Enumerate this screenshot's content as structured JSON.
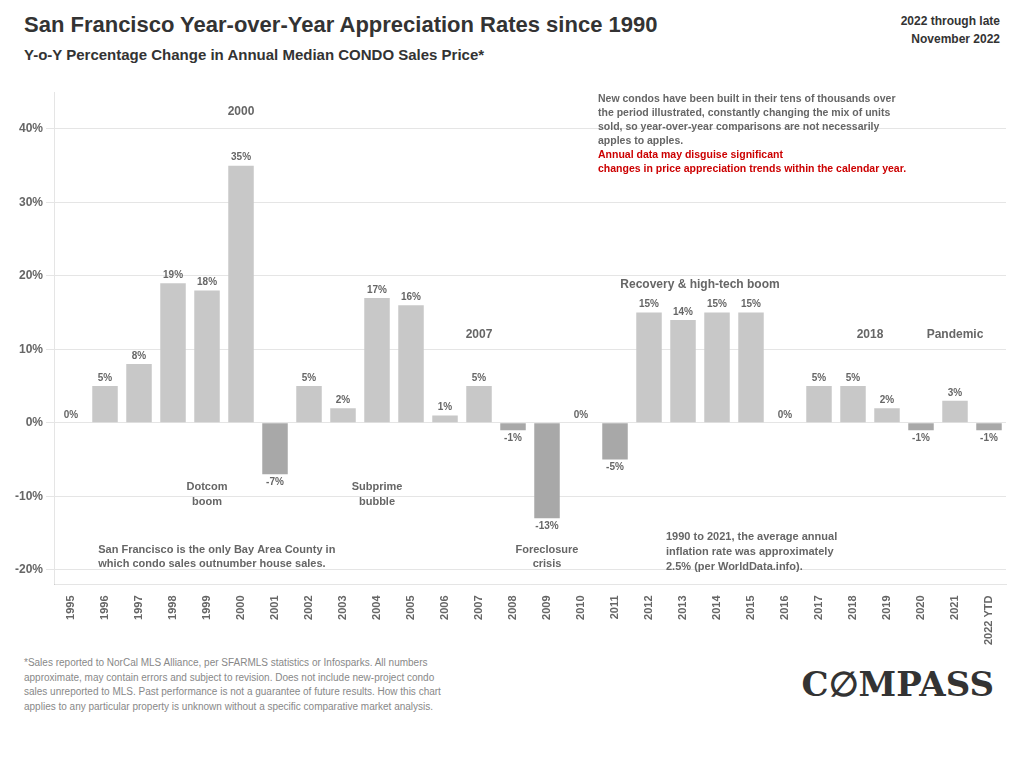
{
  "chart_data": {
    "type": "bar",
    "title": "San Francisco Year-over-Year Appreciation Rates since 1990",
    "subtitle": "Y-o-Y Percentage Change in Annual Median CONDO Sales Price*",
    "categories": [
      "1995",
      "1996",
      "1997",
      "1998",
      "1999",
      "2000",
      "2001",
      "2002",
      "2003",
      "2004",
      "2005",
      "2006",
      "2007",
      "2008",
      "2009",
      "2010",
      "2011",
      "2012",
      "2013",
      "2014",
      "2015",
      "2016",
      "2017",
      "2018",
      "2019",
      "2020",
      "2021",
      "2022 YTD"
    ],
    "values": [
      0,
      5,
      8,
      19,
      18,
      35,
      -7,
      5,
      2,
      17,
      16,
      1,
      5,
      -1,
      -13,
      0,
      -5,
      15,
      14,
      15,
      15,
      0,
      5,
      5,
      2,
      -1,
      3,
      -1
    ],
    "value_labels": [
      "0%",
      "5%",
      "8%",
      "19%",
      "18%",
      "35%",
      "-7%",
      "5%",
      "2%",
      "17%",
      "16%",
      "1%",
      "5%",
      "-1%",
      "-13%",
      "0%",
      "-5%",
      "15%",
      "14%",
      "15%",
      "15%",
      "0%",
      "5%",
      "5%",
      "2%",
      "-1%",
      "3%",
      "-1%"
    ],
    "data_labels": true,
    "colors": [
      "#c8c8c8",
      "#c8c8c8",
      "#c8c8c8",
      "#c8c8c8",
      "#c8c8c8",
      "#c8c8c8",
      "#a8a8a8",
      "#c8c8c8",
      "#c8c8c8",
      "#c8c8c8",
      "#c8c8c8",
      "#c8c8c8",
      "#c8c8c8",
      "#a8a8a8",
      "#a8a8a8",
      "#c8c8c8",
      "#a8a8a8",
      "#c8c8c8",
      "#c8c8c8",
      "#c8c8c8",
      "#c8c8c8",
      "#c8c8c8",
      "#c8c8c8",
      "#c8c8c8",
      "#c8c8c8",
      "#a8a8a8",
      "#c8c8c8",
      "#a8a8a8"
    ],
    "ylim": [
      -22,
      45
    ],
    "yticks": [
      {
        "value": -20,
        "label": "-20%"
      },
      {
        "value": -10,
        "label": "-10%"
      },
      {
        "value": 0,
        "label": "0%"
      },
      {
        "value": 10,
        "label": "10%"
      },
      {
        "value": 20,
        "label": "20%"
      },
      {
        "value": 30,
        "label": "30%"
      },
      {
        "value": 40,
        "label": "40%"
      }
    ],
    "grid": true,
    "annotations": [
      "2000",
      "Dotcom\nboom",
      "Subprime\nbubble",
      "2007",
      "Foreclosure\ncrisis",
      "Recovery & high-tech boom",
      "2018",
      "Pandemic",
      "San Francisco is the only Bay Area County in\nwhich condo sales outnumber house sales.",
      "1990 to 2021, the average annual\ninflation rate was approximately\n2.5% (per WorldData.info).",
      "2022 through late\nNovember 2022",
      "New condos have been built in their tens of thousands over\nthe period illustrated, constantly changing the mix of units\nsold, so year-over-year comparisons are not necessarily\napples to apples.",
      {
        "text": "Annual data may disguise significant\nchanges in price appreciation trends within the calendar year.",
        "color": "#cc0000"
      },
      "*Sales reported to NorCal MLS Alliance, per SFARMLS statistics or Infosparks. All numbers\napproximate, may contain errors and subject to revision. Does not include new-project condo\nsales unreported to MLS. Past performance is not a guarantee of future results. How this chart\napplies to any particular property is unknown without a specific comparative market analysis.",
      "C∅MPASS"
    ]
  }
}
